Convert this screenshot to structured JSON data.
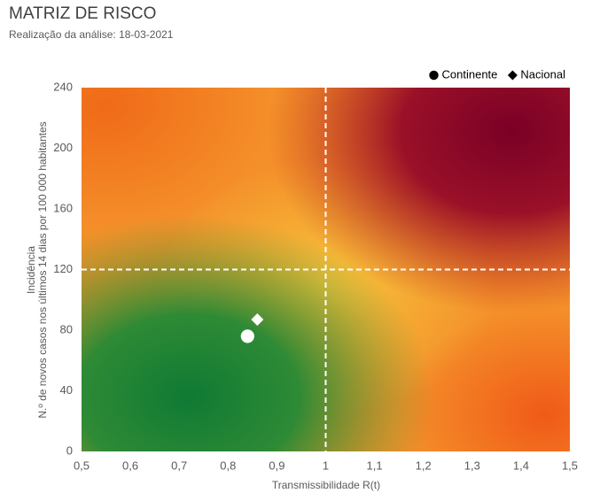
{
  "chart_data": {
    "type": "scatter",
    "title": "MATRIZ DE RISCO",
    "subtitle": "Realização da análise: 18-03-2021",
    "x_label": "Transmissibilidade R(t)",
    "y_label": [
      "Incidência",
      "N.º de novos casos nos últimos 14 dias por 100 000 habitantes"
    ],
    "xlim": [
      0.5,
      1.5
    ],
    "xticks": [
      {
        "value": 0.5,
        "label": "0,5"
      },
      {
        "value": 0.6,
        "label": "0,6"
      },
      {
        "value": 0.7,
        "label": "0,7"
      },
      {
        "value": 0.8,
        "label": "0,8"
      },
      {
        "value": 0.9,
        "label": "0,9"
      },
      1,
      {
        "value": 1.1,
        "label": "1,1"
      },
      {
        "value": 1.2,
        "label": "1,2"
      },
      {
        "value": 1.3,
        "label": "1,3"
      },
      {
        "value": 1.4,
        "label": "1,4"
      },
      {
        "value": 1.5,
        "label": "1,5"
      }
    ],
    "ylim": [
      0,
      240
    ],
    "yticks": [
      0,
      40,
      80,
      120,
      160,
      200,
      240
    ],
    "reference_lines": {
      "x": 1,
      "y": 120
    },
    "legend_position": "top-right",
    "legend_marker_color": "#000000",
    "series": [
      {
        "name": "Continente",
        "marker": "circle",
        "color": "#ffffff",
        "x": [
          0.84
        ],
        "values": [
          76
        ]
      },
      {
        "name": "Nacional",
        "marker": "diamond",
        "color": "#ffffff",
        "x": [
          0.86
        ],
        "values": [
          87
        ]
      }
    ]
  }
}
